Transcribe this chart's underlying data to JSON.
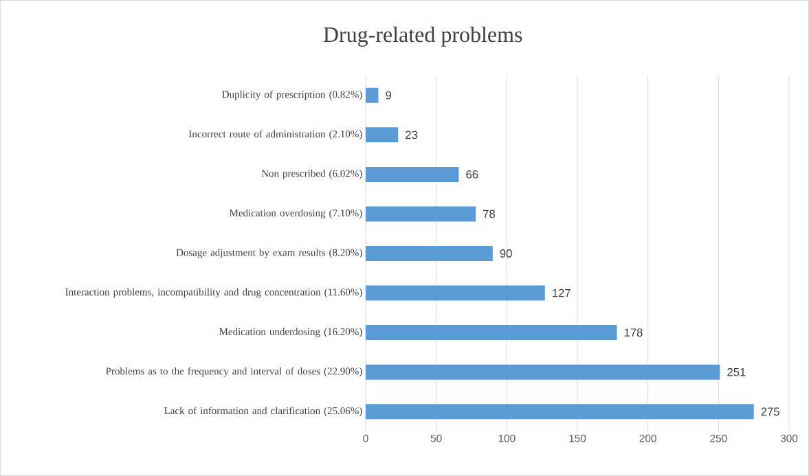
{
  "chart_data": {
    "type": "bar",
    "orientation": "horizontal",
    "title": "Drug-related problems",
    "categories": [
      "Duplicity of prescription (0.82%)",
      "Incorrect route of administration (2.10%)",
      "Non prescribed (6.02%)",
      "Medication overdosing (7.10%)",
      "Dosage adjustment by exam results (8.20%)",
      "Interaction problems, incompatibility and drug concentration (11.60%)",
      "Medication underdosing (16.20%)",
      "Problems as to the frequency and interval of doses (22.90%)",
      "Lack of information and clarification (25.06%)"
    ],
    "values": [
      9,
      23,
      66,
      78,
      90,
      127,
      178,
      251,
      275
    ],
    "color": "#5b9bd5",
    "xlim": [
      0,
      300
    ],
    "xticks": [
      0,
      50,
      100,
      150,
      200,
      250,
      300
    ],
    "grid": "x",
    "data_labels": true
  }
}
